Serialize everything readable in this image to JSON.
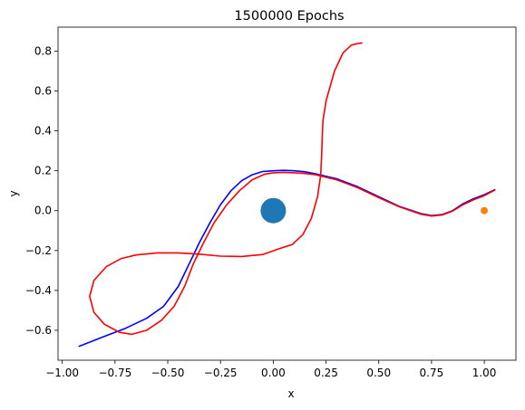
{
  "chart_data": {
    "type": "line",
    "title": "1500000 Epochs",
    "xlabel": "x",
    "ylabel": "y",
    "xlim": [
      -1.02,
      1.15
    ],
    "ylim": [
      -0.75,
      0.92
    ],
    "grid": false,
    "xticks": [
      -1.0,
      -0.75,
      -0.5,
      -0.25,
      0.0,
      0.25,
      0.5,
      0.75,
      1.0
    ],
    "xtick_labels": [
      "−1.00",
      "−0.75",
      "−0.50",
      "−0.25",
      "0.00",
      "0.25",
      "0.50",
      "0.75",
      "1.00"
    ],
    "yticks": [
      -0.6,
      -0.4,
      -0.2,
      0.0,
      0.2,
      0.4,
      0.6,
      0.8
    ],
    "ytick_labels": [
      "−0.6",
      "−0.4",
      "−0.2",
      "0.0",
      "0.2",
      "0.4",
      "0.6",
      "0.8"
    ],
    "series": [
      {
        "color": "#0000ff",
        "points": [
          [
            -0.92,
            -0.68
          ],
          [
            -0.8,
            -0.63
          ],
          [
            -0.7,
            -0.59
          ],
          [
            -0.6,
            -0.54
          ],
          [
            -0.52,
            -0.48
          ],
          [
            -0.45,
            -0.38
          ],
          [
            -0.4,
            -0.27
          ],
          [
            -0.35,
            -0.16
          ],
          [
            -0.3,
            -0.06
          ],
          [
            -0.25,
            0.03
          ],
          [
            -0.2,
            0.1
          ],
          [
            -0.15,
            0.15
          ],
          [
            -0.1,
            0.18
          ],
          [
            -0.05,
            0.196
          ],
          [
            0.0,
            0.2
          ],
          [
            0.05,
            0.202
          ],
          [
            0.1,
            0.2
          ],
          [
            0.15,
            0.195
          ],
          [
            0.2,
            0.185
          ],
          [
            0.3,
            0.16
          ],
          [
            0.4,
            0.12
          ],
          [
            0.5,
            0.07
          ],
          [
            0.6,
            0.02
          ],
          [
            0.7,
            -0.015
          ],
          [
            0.75,
            -0.025
          ],
          [
            0.8,
            -0.02
          ],
          [
            0.85,
            0.0
          ],
          [
            0.9,
            0.035
          ],
          [
            0.95,
            0.06
          ],
          [
            1.0,
            0.08
          ],
          [
            1.05,
            0.105
          ]
        ]
      },
      {
        "color": "#ff0000",
        "points": [
          [
            0.42,
            0.84
          ],
          [
            0.4,
            0.838
          ],
          [
            0.37,
            0.83
          ],
          [
            0.33,
            0.79
          ],
          [
            0.29,
            0.7
          ],
          [
            0.25,
            0.55
          ],
          [
            0.235,
            0.45
          ],
          [
            0.23,
            0.3
          ],
          [
            0.225,
            0.18
          ],
          [
            0.21,
            0.07
          ],
          [
            0.18,
            -0.04
          ],
          [
            0.14,
            -0.12
          ],
          [
            0.09,
            -0.17
          ],
          [
            0.03,
            -0.19
          ],
          [
            -0.05,
            -0.22
          ],
          [
            -0.15,
            -0.23
          ],
          [
            -0.25,
            -0.228
          ],
          [
            -0.35,
            -0.218
          ],
          [
            -0.45,
            -0.212
          ],
          [
            -0.55,
            -0.212
          ],
          [
            -0.65,
            -0.222
          ],
          [
            -0.72,
            -0.24
          ],
          [
            -0.79,
            -0.28
          ],
          [
            -0.85,
            -0.35
          ],
          [
            -0.87,
            -0.43
          ],
          [
            -0.85,
            -0.51
          ],
          [
            -0.8,
            -0.57
          ],
          [
            -0.73,
            -0.61
          ],
          [
            -0.67,
            -0.62
          ],
          [
            -0.6,
            -0.6
          ],
          [
            -0.53,
            -0.55
          ],
          [
            -0.47,
            -0.48
          ],
          [
            -0.42,
            -0.38
          ],
          [
            -0.38,
            -0.27
          ],
          [
            -0.33,
            -0.16
          ],
          [
            -0.28,
            -0.06
          ],
          [
            -0.22,
            0.03
          ],
          [
            -0.16,
            0.1
          ],
          [
            -0.1,
            0.155
          ],
          [
            -0.04,
            0.183
          ],
          [
            0.0,
            0.19
          ],
          [
            0.05,
            0.192
          ],
          [
            0.1,
            0.19
          ],
          [
            0.15,
            0.186
          ],
          [
            0.2,
            0.18
          ],
          [
            0.3,
            0.155
          ],
          [
            0.4,
            0.115
          ],
          [
            0.5,
            0.065
          ],
          [
            0.6,
            0.018
          ],
          [
            0.7,
            -0.018
          ],
          [
            0.75,
            -0.027
          ],
          [
            0.8,
            -0.022
          ],
          [
            0.85,
            -0.002
          ],
          [
            0.9,
            0.03
          ],
          [
            0.95,
            0.055
          ],
          [
            1.0,
            0.075
          ],
          [
            1.05,
            0.103
          ]
        ]
      }
    ],
    "markers": [
      {
        "x": 0.0,
        "y": 0.0,
        "color": "#1f77b4",
        "size": "large"
      },
      {
        "x": 1.0,
        "y": 0.0,
        "color": "#ff7f0e",
        "size": "small"
      }
    ]
  }
}
